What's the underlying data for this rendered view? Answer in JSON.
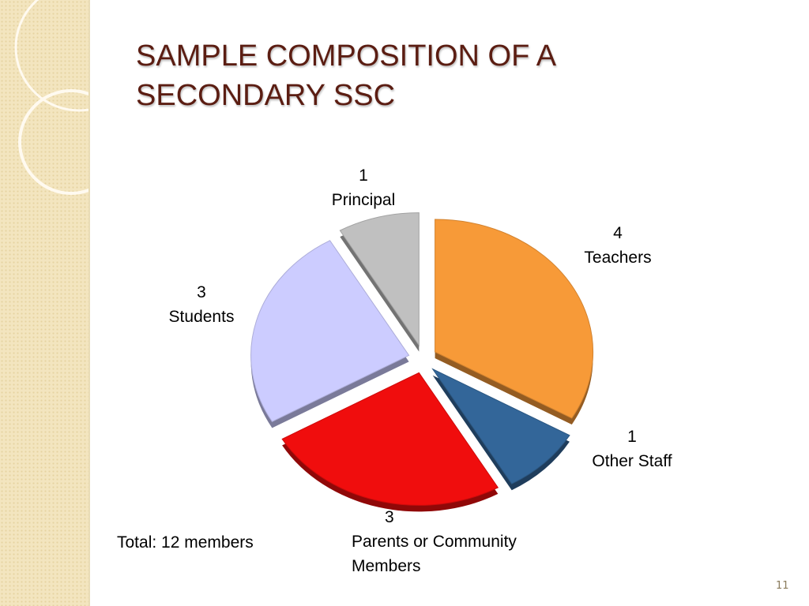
{
  "slide": {
    "page_number": "11"
  },
  "chart_data": {
    "type": "pie",
    "title": "SAMPLE COMPOSITION OF A SECONDARY SSC",
    "categories": [
      "Teachers",
      "Other Staff",
      "Parents or Community Members",
      "Students",
      "Principal"
    ],
    "values": [
      4,
      1,
      3,
      3,
      1
    ],
    "colors": [
      "#f79a38",
      "#336699",
      "#f00d0d",
      "#ccccff",
      "#c0c0c0"
    ],
    "annotation": "Total: 12 members"
  }
}
